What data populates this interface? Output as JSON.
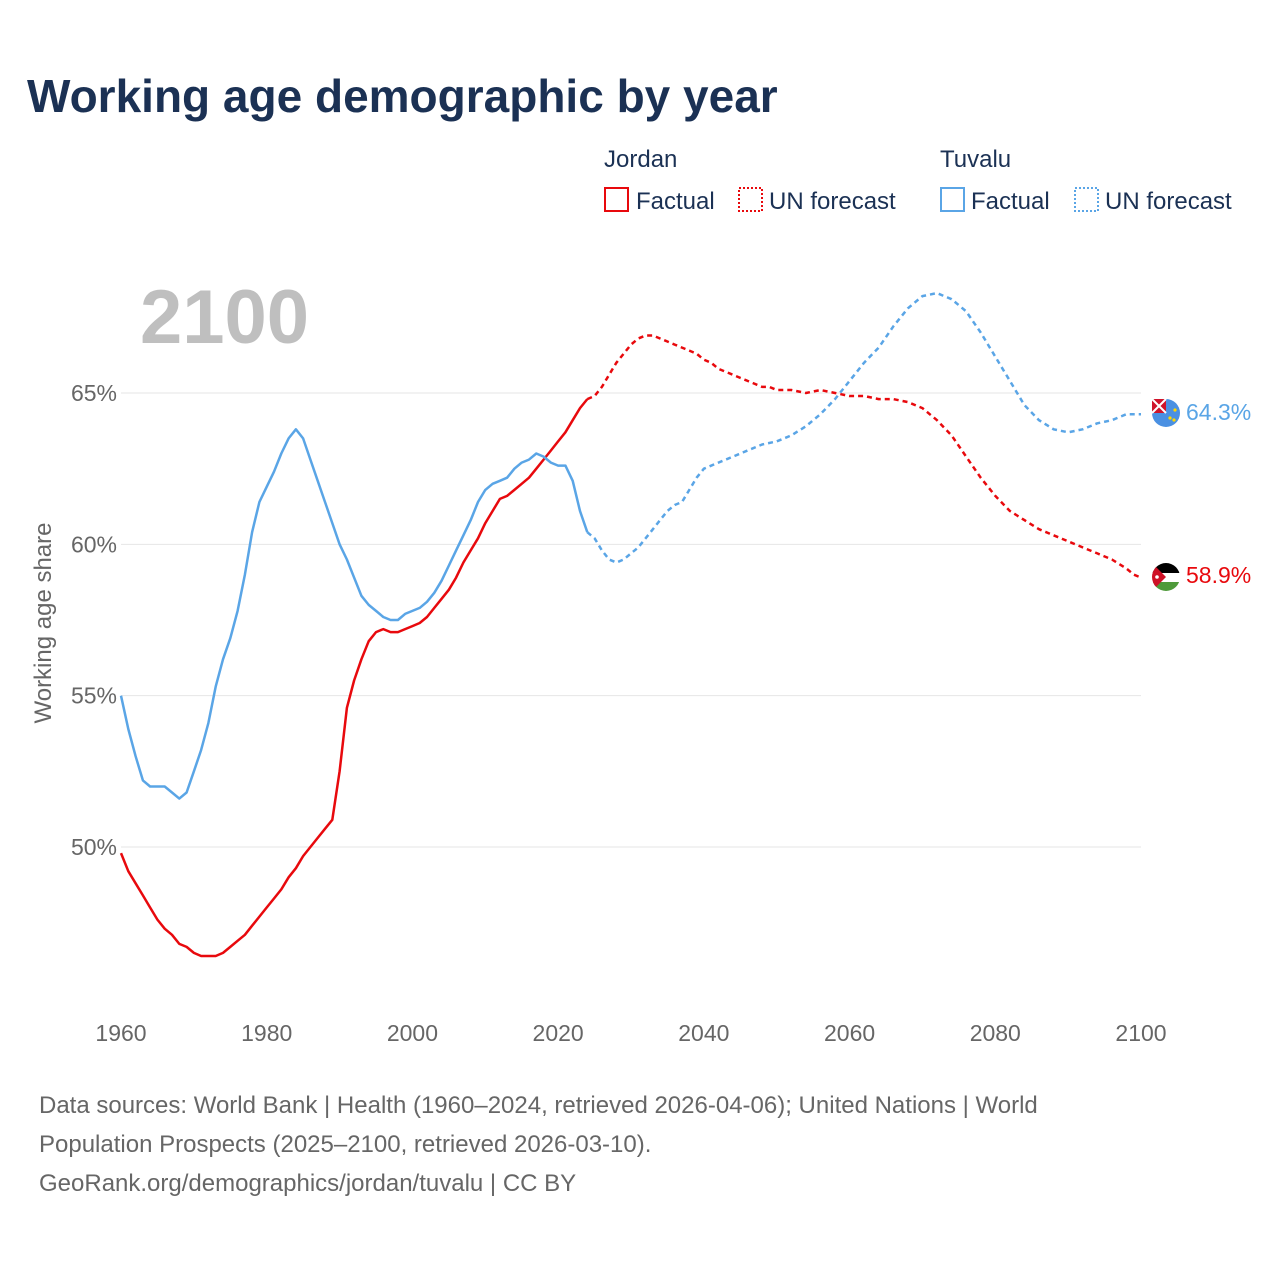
{
  "title": "Working age demographic by year",
  "legend": {
    "jordan": {
      "name": "Jordan",
      "factual_label": "Factual",
      "forecast_label": "UN forecast",
      "color": "#e8090d"
    },
    "tuvalu": {
      "name": "Tuvalu",
      "factual_label": "Factual",
      "forecast_label": "UN forecast",
      "color": "#5aa5e6"
    }
  },
  "year_watermark": "2100",
  "end_labels": {
    "jordan": "58.9%",
    "tuvalu": "64.3%"
  },
  "footer": {
    "line1": "Data sources: World Bank | Health (1960–2024, retrieved 2026-04-06); United Nations | World",
    "line2": "Population Prospects (2025–2100, retrieved 2026-03-10).",
    "line3": "GeoRank.org/demographics/jordan/tuvalu | CC BY"
  },
  "colors": {
    "title": "#1b3154",
    "axis_text": "#666666",
    "grid": "#e6e6e6",
    "watermark": "#bfbfbf"
  },
  "chart_data": {
    "type": "line",
    "title": "Working age demographic by year",
    "xlabel": "",
    "ylabel": "Working age share",
    "xlim": [
      1960,
      2100
    ],
    "ylim": [
      46.5,
      70.5
    ],
    "x_ticks": [
      1960,
      1980,
      2000,
      2020,
      2040,
      2060,
      2080,
      2100
    ],
    "x_tick_labels": [
      "1960",
      "1980",
      "2000",
      "2020",
      "2040",
      "2060",
      "2080",
      "2100"
    ],
    "y_ticks": [
      50,
      55,
      60,
      65
    ],
    "y_tick_labels": [
      "50%",
      "55%",
      "60%",
      "65%"
    ],
    "grid": true,
    "forecast_start_year": 2024,
    "series": [
      {
        "name": "Jordan",
        "key": "jordan",
        "color": "#e8090d",
        "points": [
          [
            1960,
            49.8
          ],
          [
            1961,
            49.2
          ],
          [
            1962,
            48.8
          ],
          [
            1963,
            48.4
          ],
          [
            1964,
            48.0
          ],
          [
            1965,
            47.6
          ],
          [
            1966,
            47.3
          ],
          [
            1967,
            47.1
          ],
          [
            1968,
            46.8
          ],
          [
            1969,
            46.7
          ],
          [
            1970,
            46.5
          ],
          [
            1971,
            46.4
          ],
          [
            1972,
            46.4
          ],
          [
            1973,
            46.4
          ],
          [
            1974,
            46.5
          ],
          [
            1975,
            46.7
          ],
          [
            1976,
            46.9
          ],
          [
            1977,
            47.1
          ],
          [
            1978,
            47.4
          ],
          [
            1979,
            47.7
          ],
          [
            1980,
            48.0
          ],
          [
            1981,
            48.3
          ],
          [
            1982,
            48.6
          ],
          [
            1983,
            49.0
          ],
          [
            1984,
            49.3
          ],
          [
            1985,
            49.7
          ],
          [
            1986,
            50.0
          ],
          [
            1987,
            50.3
          ],
          [
            1988,
            50.6
          ],
          [
            1989,
            50.9
          ],
          [
            1990,
            52.5
          ],
          [
            1991,
            54.6
          ],
          [
            1992,
            55.5
          ],
          [
            1993,
            56.2
          ],
          [
            1994,
            56.8
          ],
          [
            1995,
            57.1
          ],
          [
            1996,
            57.2
          ],
          [
            1997,
            57.1
          ],
          [
            1998,
            57.1
          ],
          [
            1999,
            57.2
          ],
          [
            2000,
            57.3
          ],
          [
            2001,
            57.4
          ],
          [
            2002,
            57.6
          ],
          [
            2003,
            57.9
          ],
          [
            2004,
            58.2
          ],
          [
            2005,
            58.5
          ],
          [
            2006,
            58.9
          ],
          [
            2007,
            59.4
          ],
          [
            2008,
            59.8
          ],
          [
            2009,
            60.2
          ],
          [
            2010,
            60.7
          ],
          [
            2011,
            61.1
          ],
          [
            2012,
            61.5
          ],
          [
            2013,
            61.6
          ],
          [
            2014,
            61.8
          ],
          [
            2015,
            62.0
          ],
          [
            2016,
            62.2
          ],
          [
            2017,
            62.5
          ],
          [
            2018,
            62.8
          ],
          [
            2019,
            63.1
          ],
          [
            2020,
            63.4
          ],
          [
            2021,
            63.7
          ],
          [
            2022,
            64.1
          ],
          [
            2023,
            64.5
          ],
          [
            2024,
            64.8
          ],
          [
            2025,
            64.9
          ],
          [
            2026,
            65.2
          ],
          [
            2027,
            65.6
          ],
          [
            2028,
            66.0
          ],
          [
            2029,
            66.3
          ],
          [
            2030,
            66.6
          ],
          [
            2031,
            66.8
          ],
          [
            2032,
            66.9
          ],
          [
            2033,
            66.9
          ],
          [
            2034,
            66.8
          ],
          [
            2035,
            66.7
          ],
          [
            2036,
            66.6
          ],
          [
            2037,
            66.5
          ],
          [
            2038,
            66.4
          ],
          [
            2039,
            66.3
          ],
          [
            2040,
            66.1
          ],
          [
            2041,
            66.0
          ],
          [
            2042,
            65.8
          ],
          [
            2043,
            65.7
          ],
          [
            2044,
            65.6
          ],
          [
            2045,
            65.5
          ],
          [
            2046,
            65.4
          ],
          [
            2047,
            65.3
          ],
          [
            2048,
            65.2
          ],
          [
            2049,
            65.2
          ],
          [
            2050,
            65.1
          ],
          [
            2052,
            65.1
          ],
          [
            2054,
            65.0
          ],
          [
            2056,
            65.1
          ],
          [
            2058,
            65.0
          ],
          [
            2060,
            64.9
          ],
          [
            2062,
            64.9
          ],
          [
            2064,
            64.8
          ],
          [
            2066,
            64.8
          ],
          [
            2068,
            64.7
          ],
          [
            2070,
            64.5
          ],
          [
            2072,
            64.1
          ],
          [
            2074,
            63.6
          ],
          [
            2076,
            62.9
          ],
          [
            2078,
            62.2
          ],
          [
            2080,
            61.6
          ],
          [
            2082,
            61.1
          ],
          [
            2084,
            60.8
          ],
          [
            2086,
            60.5
          ],
          [
            2088,
            60.3
          ],
          [
            2090,
            60.1
          ],
          [
            2092,
            59.9
          ],
          [
            2094,
            59.7
          ],
          [
            2096,
            59.5
          ],
          [
            2098,
            59.2
          ],
          [
            2099,
            59.0
          ],
          [
            2100,
            58.9
          ]
        ]
      },
      {
        "name": "Tuvalu",
        "key": "tuvalu",
        "color": "#5aa5e6",
        "points": [
          [
            1960,
            55.0
          ],
          [
            1961,
            53.9
          ],
          [
            1962,
            53.0
          ],
          [
            1963,
            52.2
          ],
          [
            1964,
            52.0
          ],
          [
            1965,
            52.0
          ],
          [
            1966,
            52.0
          ],
          [
            1967,
            51.8
          ],
          [
            1968,
            51.6
          ],
          [
            1969,
            51.8
          ],
          [
            1970,
            52.5
          ],
          [
            1971,
            53.2
          ],
          [
            1972,
            54.1
          ],
          [
            1973,
            55.3
          ],
          [
            1974,
            56.2
          ],
          [
            1975,
            56.9
          ],
          [
            1976,
            57.8
          ],
          [
            1977,
            59.0
          ],
          [
            1978,
            60.4
          ],
          [
            1979,
            61.4
          ],
          [
            1980,
            61.9
          ],
          [
            1981,
            62.4
          ],
          [
            1982,
            63.0
          ],
          [
            1983,
            63.5
          ],
          [
            1984,
            63.8
          ],
          [
            1985,
            63.5
          ],
          [
            1986,
            62.8
          ],
          [
            1987,
            62.1
          ],
          [
            1988,
            61.4
          ],
          [
            1989,
            60.7
          ],
          [
            1990,
            60.0
          ],
          [
            1991,
            59.5
          ],
          [
            1992,
            58.9
          ],
          [
            1993,
            58.3
          ],
          [
            1994,
            58.0
          ],
          [
            1995,
            57.8
          ],
          [
            1996,
            57.6
          ],
          [
            1997,
            57.5
          ],
          [
            1998,
            57.5
          ],
          [
            1999,
            57.7
          ],
          [
            2000,
            57.8
          ],
          [
            2001,
            57.9
          ],
          [
            2002,
            58.1
          ],
          [
            2003,
            58.4
          ],
          [
            2004,
            58.8
          ],
          [
            2005,
            59.3
          ],
          [
            2006,
            59.8
          ],
          [
            2007,
            60.3
          ],
          [
            2008,
            60.8
          ],
          [
            2009,
            61.4
          ],
          [
            2010,
            61.8
          ],
          [
            2011,
            62.0
          ],
          [
            2012,
            62.1
          ],
          [
            2013,
            62.2
          ],
          [
            2014,
            62.5
          ],
          [
            2015,
            62.7
          ],
          [
            2016,
            62.8
          ],
          [
            2017,
            63.0
          ],
          [
            2018,
            62.9
          ],
          [
            2019,
            62.7
          ],
          [
            2020,
            62.6
          ],
          [
            2021,
            62.6
          ],
          [
            2022,
            62.1
          ],
          [
            2023,
            61.1
          ],
          [
            2024,
            60.4
          ],
          [
            2025,
            60.2
          ],
          [
            2026,
            59.8
          ],
          [
            2027,
            59.5
          ],
          [
            2028,
            59.4
          ],
          [
            2029,
            59.5
          ],
          [
            2030,
            59.7
          ],
          [
            2031,
            59.9
          ],
          [
            2032,
            60.2
          ],
          [
            2033,
            60.5
          ],
          [
            2034,
            60.8
          ],
          [
            2035,
            61.1
          ],
          [
            2036,
            61.3
          ],
          [
            2037,
            61.4
          ],
          [
            2038,
            61.8
          ],
          [
            2039,
            62.2
          ],
          [
            2040,
            62.5
          ],
          [
            2042,
            62.7
          ],
          [
            2044,
            62.9
          ],
          [
            2046,
            63.1
          ],
          [
            2048,
            63.3
          ],
          [
            2050,
            63.4
          ],
          [
            2052,
            63.6
          ],
          [
            2054,
            63.9
          ],
          [
            2056,
            64.3
          ],
          [
            2058,
            64.8
          ],
          [
            2060,
            65.4
          ],
          [
            2062,
            66.0
          ],
          [
            2064,
            66.5
          ],
          [
            2066,
            67.2
          ],
          [
            2068,
            67.8
          ],
          [
            2070,
            68.2
          ],
          [
            2072,
            68.3
          ],
          [
            2074,
            68.1
          ],
          [
            2076,
            67.7
          ],
          [
            2078,
            67.0
          ],
          [
            2080,
            66.2
          ],
          [
            2082,
            65.4
          ],
          [
            2084,
            64.6
          ],
          [
            2086,
            64.1
          ],
          [
            2088,
            63.8
          ],
          [
            2090,
            63.7
          ],
          [
            2092,
            63.8
          ],
          [
            2094,
            64.0
          ],
          [
            2096,
            64.1
          ],
          [
            2098,
            64.3
          ],
          [
            2100,
            64.3
          ]
        ]
      }
    ]
  }
}
